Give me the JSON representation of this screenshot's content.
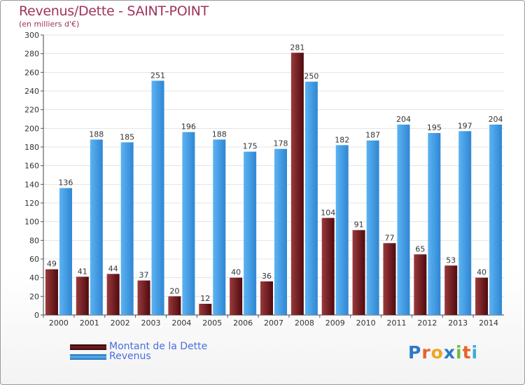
{
  "header": {
    "title": "Revenus/Dette - SAINT-POINT",
    "subtitle": "(en milliers d'€)"
  },
  "colors": {
    "title": "#a0335d",
    "dette": "#7a1f24",
    "revenus": "#3f9be6",
    "legend_text": "#4a6ee0",
    "grid": "#e3e3e3"
  },
  "chart_data": {
    "type": "bar",
    "title": "Revenus/Dette - SAINT-POINT",
    "subtitle": "(en milliers d'€)",
    "categories": [
      "2000",
      "2001",
      "2002",
      "2003",
      "2004",
      "2005",
      "2006",
      "2007",
      "2008",
      "2009",
      "2010",
      "2011",
      "2012",
      "2013",
      "2014"
    ],
    "series": [
      {
        "name": "Montant de la Dette",
        "values": [
          49,
          41,
          44,
          37,
          20,
          12,
          40,
          36,
          281,
          104,
          91,
          77,
          65,
          53,
          40
        ]
      },
      {
        "name": "Revenus",
        "values": [
          136,
          188,
          185,
          251,
          196,
          188,
          175,
          178,
          250,
          182,
          187,
          204,
          195,
          197,
          204
        ]
      }
    ],
    "ylim": [
      0,
      300
    ],
    "yticks": [
      0,
      20,
      40,
      60,
      80,
      100,
      120,
      140,
      160,
      180,
      200,
      220,
      240,
      260,
      280,
      300
    ],
    "grid": true,
    "legend_position": "bottom-left",
    "data_labels": true
  },
  "legend": {
    "items": [
      {
        "label": "Montant de la Dette"
      },
      {
        "label": "Revenus"
      }
    ]
  },
  "logo": {
    "text": "Proxiti",
    "letters": [
      "P",
      "r",
      "o",
      "x",
      "i",
      "t",
      "i"
    ],
    "letter_colors": [
      "#2d79c7",
      "#e8622c",
      "#f0a422",
      "#2d79c7",
      "#6cbf3a",
      "#e8622c",
      "#3aaed8"
    ]
  }
}
